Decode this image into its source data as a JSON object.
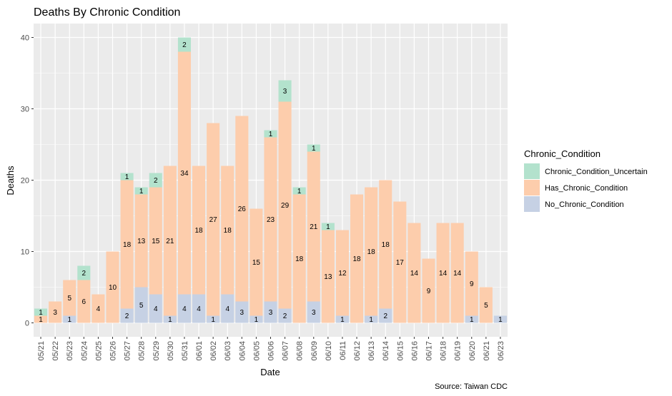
{
  "chart_data": {
    "type": "bar",
    "stacked": true,
    "title": "Deaths By Chronic Condition",
    "xlabel": "Date",
    "ylabel": "Deaths",
    "caption": "Source: Taiwan CDC",
    "ylim": [
      0,
      41
    ],
    "yticks": [
      0,
      10,
      20,
      30,
      40
    ],
    "grid": true,
    "legend_position": "right",
    "legend_title": "Chronic_Condition",
    "categories": [
      "05/21",
      "05/22",
      "05/23",
      "05/24",
      "05/25",
      "05/26",
      "05/27",
      "05/28",
      "05/29",
      "05/30",
      "05/31",
      "06/01",
      "06/02",
      "06/03",
      "06/04",
      "06/05",
      "06/06",
      "06/07",
      "06/08",
      "06/09",
      "06/10",
      "06/11",
      "06/12",
      "06/13",
      "06/14",
      "06/15",
      "06/16",
      "06/17",
      "06/18",
      "06/19",
      "06/20",
      "06/21",
      "06/23"
    ],
    "series": [
      {
        "name": "No_Chronic_Condition",
        "color": "#c6d1e4",
        "values": [
          0,
          0,
          1,
          0,
          0,
          0,
          2,
          5,
          4,
          1,
          4,
          4,
          1,
          4,
          3,
          1,
          3,
          2,
          0,
          3,
          0,
          1,
          0,
          1,
          2,
          0,
          0,
          0,
          0,
          0,
          1,
          0,
          1
        ]
      },
      {
        "name": "Has_Chronic_Condition",
        "color": "#fdcdac",
        "values": [
          1,
          3,
          5,
          6,
          4,
          10,
          18,
          13,
          15,
          21,
          34,
          18,
          27,
          18,
          26,
          15,
          23,
          29,
          18,
          21,
          13,
          12,
          18,
          18,
          18,
          17,
          14,
          9,
          14,
          14,
          9,
          5,
          0
        ]
      },
      {
        "name": "Chronic_Condition_Uncertain",
        "color": "#b3e2cd",
        "values": [
          1,
          0,
          0,
          2,
          0,
          0,
          1,
          1,
          2,
          0,
          2,
          0,
          0,
          0,
          0,
          0,
          1,
          3,
          1,
          1,
          1,
          0,
          0,
          0,
          0,
          0,
          0,
          0,
          0,
          0,
          0,
          0,
          0
        ]
      }
    ],
    "legend_order": [
      "Chronic_Condition_Uncertain",
      "Has_Chronic_Condition",
      "No_Chronic_Condition"
    ],
    "panel_background": "#ebebeb",
    "grid_color": "#ffffff"
  }
}
